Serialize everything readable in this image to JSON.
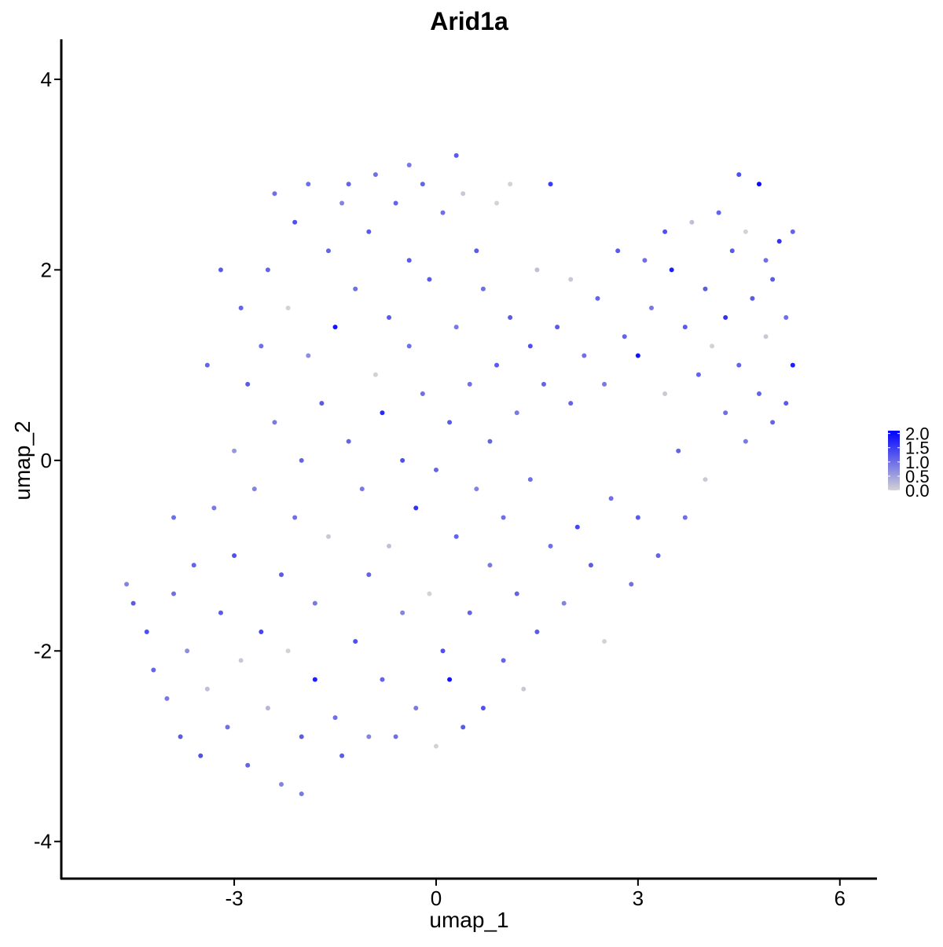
{
  "chart_data": {
    "type": "scatter",
    "title": "Arid1a",
    "x_label": "umap_1",
    "y_label": "umap_2",
    "x": [
      -4.6,
      -4.5,
      -4.2,
      -4.3,
      -4.0,
      -3.9,
      -3.8,
      -3.7,
      -3.6,
      -3.5,
      -3.4,
      -3.3,
      -3.2,
      -3.1,
      -3.0,
      -3.0,
      -2.9,
      -2.8,
      -2.8,
      -2.7,
      -2.6,
      -2.6,
      -2.5,
      -2.5,
      -2.4,
      -2.3,
      -2.3,
      -2.2,
      -2.2,
      -2.1,
      -2.1,
      -2.0,
      -2.0,
      -1.9,
      -1.9,
      -1.8,
      -1.8,
      -1.7,
      -1.6,
      -1.6,
      -1.5,
      -1.5,
      -1.4,
      -1.4,
      -1.3,
      -1.2,
      -1.2,
      -1.1,
      -1.0,
      -1.0,
      -0.9,
      -0.9,
      -0.8,
      -0.8,
      -0.7,
      -0.7,
      -0.6,
      -0.6,
      -0.5,
      -0.5,
      -0.4,
      -0.4,
      -0.3,
      -0.3,
      -0.2,
      -0.2,
      -0.1,
      -0.1,
      0.0,
      0.0,
      0.1,
      0.1,
      0.2,
      0.2,
      0.3,
      0.3,
      0.4,
      0.4,
      0.5,
      0.5,
      0.6,
      0.6,
      0.7,
      0.7,
      0.8,
      0.8,
      0.9,
      0.9,
      1.0,
      1.0,
      1.1,
      1.1,
      1.2,
      1.2,
      1.3,
      1.4,
      1.4,
      1.5,
      1.5,
      1.6,
      1.7,
      1.7,
      1.8,
      1.9,
      2.0,
      2.0,
      2.1,
      2.2,
      2.3,
      2.4,
      2.5,
      2.5,
      2.6,
      2.7,
      2.8,
      2.9,
      3.0,
      3.0,
      3.1,
      3.2,
      3.3,
      3.4,
      3.4,
      3.5,
      3.6,
      3.7,
      3.7,
      3.8,
      3.9,
      4.0,
      4.0,
      4.1,
      4.2,
      4.3,
      4.3,
      4.4,
      4.5,
      4.5,
      4.6,
      4.6,
      4.7,
      4.8,
      4.8,
      4.9,
      4.9,
      5.0,
      5.0,
      5.1,
      5.2,
      5.2,
      5.3,
      5.3,
      -3.9,
      -3.4,
      -3.2,
      -2.9,
      -2.4,
      -1.3,
      -0.4,
      0.3,
      -2.0,
      -1.0
    ],
    "y": [
      -1.3,
      -1.5,
      -2.2,
      -1.8,
      -2.5,
      -1.4,
      -2.9,
      -2.0,
      -1.1,
      -3.1,
      -2.4,
      -0.5,
      -1.6,
      -2.8,
      0.1,
      -1.0,
      -2.1,
      0.8,
      -3.2,
      -0.3,
      1.2,
      -1.8,
      -2.6,
      2.0,
      0.4,
      -1.2,
      -3.4,
      1.6,
      -2.0,
      2.5,
      -0.6,
      0.0,
      -2.9,
      2.9,
      1.1,
      -2.3,
      -1.5,
      0.6,
      2.2,
      -0.8,
      1.4,
      -2.7,
      -3.1,
      2.7,
      0.2,
      -1.9,
      1.8,
      -0.3,
      2.4,
      -1.2,
      0.9,
      3.0,
      0.5,
      -2.3,
      1.5,
      -0.9,
      2.7,
      -2.9,
      0.0,
      -1.6,
      1.2,
      2.1,
      -0.5,
      -2.6,
      2.9,
      0.7,
      -1.4,
      1.9,
      -0.1,
      -3.0,
      2.6,
      -2.0,
      0.4,
      -2.3,
      1.4,
      -0.8,
      2.8,
      -2.8,
      0.8,
      -1.6,
      2.2,
      -0.3,
      1.8,
      -2.6,
      0.2,
      -1.1,
      2.7,
      1.0,
      -2.1,
      -0.6,
      2.9,
      1.5,
      -1.4,
      0.5,
      -2.4,
      1.2,
      -0.2,
      2.0,
      -1.8,
      0.8,
      2.9,
      -0.9,
      1.4,
      -1.5,
      0.6,
      1.9,
      -0.7,
      1.1,
      -1.1,
      1.7,
      0.8,
      -1.9,
      -0.4,
      2.2,
      1.3,
      -1.3,
      1.1,
      -0.6,
      2.1,
      1.6,
      -1.0,
      0.7,
      2.4,
      2.0,
      0.1,
      -0.6,
      1.4,
      2.5,
      0.9,
      1.8,
      -0.2,
      1.2,
      2.6,
      0.5,
      1.5,
      2.2,
      3.0,
      1.0,
      0.2,
      2.4,
      1.7,
      2.9,
      0.7,
      2.1,
      1.3,
      1.9,
      0.4,
      2.3,
      1.5,
      0.6,
      2.4,
      1.0,
      -0.6,
      1.0,
      2.0,
      1.6,
      2.8,
      2.9,
      3.1,
      3.2,
      -3.5,
      -2.9
    ],
    "values": [
      0.8,
      1.2,
      1.1,
      1.3,
      0.9,
      1.0,
      1.2,
      0.7,
      1.1,
      1.3,
      0.2,
      0.9,
      1.2,
      1.0,
      0.6,
      1.3,
      0.1,
      1.2,
      1.1,
      0.8,
      1.0,
      1.4,
      0.3,
      1.1,
      0.9,
      1.2,
      0.8,
      0.0,
      0.0,
      1.3,
      1.0,
      1.1,
      1.2,
      1.0,
      0.7,
      1.8,
      0.9,
      1.2,
      1.1,
      0.1,
      1.9,
      1.0,
      1.2,
      0.8,
      1.1,
      1.3,
      1.0,
      0.9,
      1.2,
      1.1,
      0.0,
      1.0,
      1.7,
      1.1,
      1.2,
      0.2,
      1.1,
      1.0,
      1.3,
      0.8,
      1.0,
      1.2,
      1.6,
      0.9,
      1.1,
      1.0,
      0.0,
      1.2,
      1.1,
      0.0,
      1.0,
      1.3,
      1.2,
      1.9,
      0.9,
      1.1,
      0.1,
      1.2,
      1.0,
      1.1,
      1.2,
      0.8,
      1.0,
      1.3,
      1.1,
      0.9,
      0.0,
      1.2,
      1.1,
      1.0,
      0.0,
      1.2,
      1.1,
      0.9,
      0.1,
      1.3,
      1.0,
      0.2,
      1.2,
      1.1,
      1.5,
      1.0,
      1.2,
      0.8,
      1.1,
      0.1,
      1.4,
      1.0,
      1.2,
      1.1,
      0.9,
      0.0,
      1.0,
      1.2,
      1.1,
      1.0,
      1.9,
      1.2,
      1.0,
      0.9,
      1.1,
      0.1,
      1.3,
      1.8,
      1.1,
      1.0,
      1.2,
      0.2,
      1.1,
      1.2,
      0.1,
      0.0,
      1.1,
      1.0,
      1.6,
      1.2,
      1.3,
      1.1,
      0.9,
      0.0,
      1.2,
      2.0,
      1.1,
      1.0,
      0.1,
      1.2,
      1.1,
      1.6,
      1.0,
      1.2,
      1.1,
      1.8,
      1.0,
      1.1,
      1.2,
      1.1,
      1.0,
      1.1,
      0.9,
      1.2,
      0.9,
      0.8
    ],
    "xlim": [
      -5.57,
      6.54
    ],
    "ylim": [
      -4.39,
      4.42
    ],
    "xticks": [
      -3,
      0,
      3,
      6
    ],
    "yticks": [
      -4,
      -2,
      0,
      2,
      4
    ],
    "color_low": "#d3d3d3",
    "color_high": "#0000ff",
    "color_lim": [
      0,
      2.1
    ],
    "color_ticks": [
      {
        "value": 2,
        "label": "2.0"
      },
      {
        "value": 1.5,
        "label": "1.5"
      },
      {
        "value": 1,
        "label": "1.0"
      },
      {
        "value": 0.5,
        "label": "0.5"
      },
      {
        "value": 0,
        "label": "0.0"
      }
    ]
  }
}
